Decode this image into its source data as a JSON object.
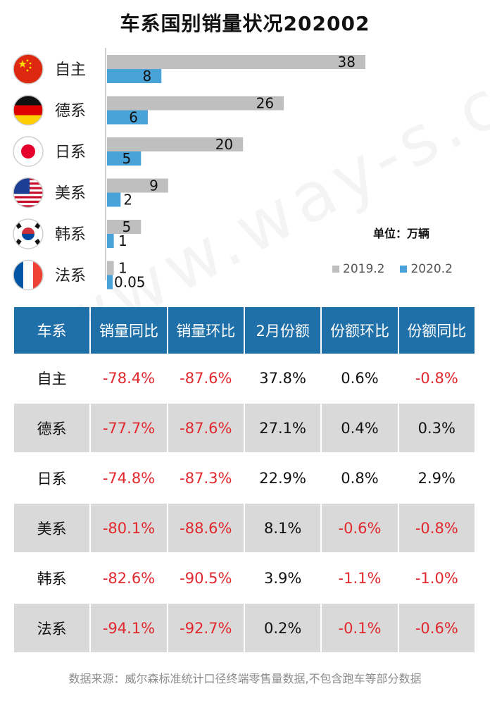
{
  "title": "车系国别销量状况202002",
  "unit_label": "单位：万辆",
  "legend": [
    {
      "name": "2019.2",
      "color": "#bfbfbf"
    },
    {
      "name": "2020.2",
      "color": "#4aa3d8"
    }
  ],
  "chart_data": {
    "type": "bar",
    "orientation": "horizontal",
    "categories": [
      "自主",
      "德系",
      "日系",
      "美系",
      "韩系",
      "法系"
    ],
    "flags": [
      "china-flag-icon",
      "germany-flag-icon",
      "japan-flag-icon",
      "usa-flag-icon",
      "korea-flag-icon",
      "france-flag-icon"
    ],
    "series": [
      {
        "name": "2019.2",
        "color": "#bfbfbf",
        "values": [
          38,
          26,
          20,
          9,
          5,
          1
        ],
        "labels": [
          "38",
          "26",
          "20",
          "9",
          "5",
          "1"
        ]
      },
      {
        "name": "2020.2",
        "color": "#4aa3d8",
        "values": [
          8,
          6,
          5,
          2,
          1,
          0.05
        ],
        "labels": [
          "8",
          "6",
          "5",
          "2",
          "1",
          "0.05"
        ]
      }
    ],
    "xlim": [
      0,
      40
    ],
    "grid": false,
    "legend_position": "bottom-right"
  },
  "table": {
    "headers": [
      "车系",
      "销量同比",
      "销量环比",
      "2月份额",
      "份额环比",
      "份额同比"
    ],
    "rows": [
      [
        "自主",
        "-78.4%",
        "-87.6%",
        "37.8%",
        "0.6%",
        "-0.8%"
      ],
      [
        "德系",
        "-77.7%",
        "-87.6%",
        "27.1%",
        "0.4%",
        "0.3%"
      ],
      [
        "日系",
        "-74.8%",
        "-87.3%",
        "22.9%",
        "0.8%",
        "2.9%"
      ],
      [
        "美系",
        "-80.1%",
        "-88.6%",
        "8.1%",
        "-0.6%",
        "-0.8%"
      ],
      [
        "韩系",
        "-82.6%",
        "-90.5%",
        "3.9%",
        "-1.1%",
        "-1.0%"
      ],
      [
        "法系",
        "-94.1%",
        "-92.7%",
        "0.2%",
        "-0.1%",
        "-0.6%"
      ]
    ]
  },
  "watermark": "www.way-s.cn",
  "footer": "数据来源：威尔森标准统计口径终端零售量数据,不包含跑车等部分数据"
}
